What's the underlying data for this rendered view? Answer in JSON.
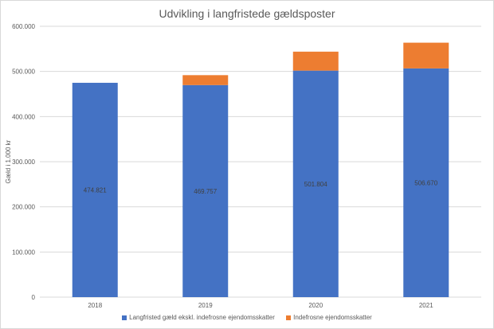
{
  "chart_data": {
    "type": "bar",
    "stacked": true,
    "title": "Udvikling i langfristede gældsposter",
    "ylabel": "Gæld i 1.000 kr",
    "xlabel": "",
    "ylim": [
      0,
      600000
    ],
    "yticks": [
      0,
      100000,
      200000,
      300000,
      400000,
      500000,
      600000
    ],
    "ytick_labels": [
      "0",
      "100.000",
      "200.000",
      "300.000",
      "400.000",
      "500.000",
      "600.000"
    ],
    "grid": true,
    "legend_position": "bottom",
    "categories": [
      "2018",
      "2019",
      "2020",
      "2021"
    ],
    "series": [
      {
        "name": "Langfristed gæld ekskl. indefrosne ejendomsskatter",
        "color": "#4472c4",
        "values": [
          474821,
          469757,
          501804,
          506670
        ],
        "labels": [
          "474.821",
          "469.757",
          "501.804",
          "506.670"
        ]
      },
      {
        "name": "Indefrosne ejendomsskatter",
        "color": "#ed7d31",
        "values": [
          0,
          22000,
          42000,
          57000
        ]
      }
    ]
  }
}
